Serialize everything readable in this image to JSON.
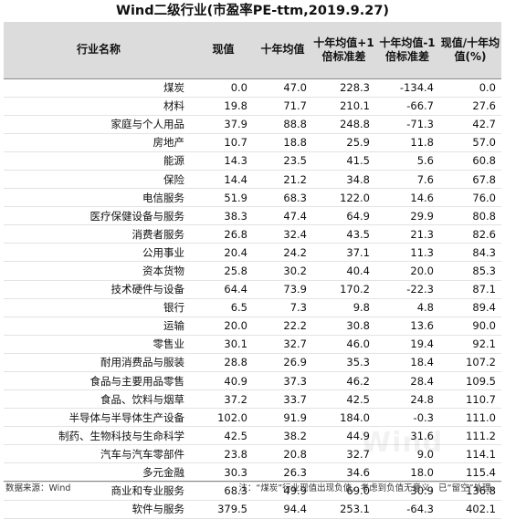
{
  "title": "Wind二级行业(市盈率PE-ttm,2019.9.27)",
  "headers": {
    "name": "行业名称",
    "current": "现值",
    "avg10": "十年均值",
    "plus1sd": "十年均值+1倍标准差",
    "minus1sd": "十年均值-1倍标准差",
    "ratio": "现值/十年均值(%)"
  },
  "rows": [
    {
      "name": "煤炭",
      "current": "0.0",
      "avg10": "47.0",
      "plus1sd": "228.3",
      "minus1sd": "-134.4",
      "ratio": "0.0"
    },
    {
      "name": "材料",
      "current": "19.8",
      "avg10": "71.7",
      "plus1sd": "210.1",
      "minus1sd": "-66.7",
      "ratio": "27.6"
    },
    {
      "name": "家庭与个人用品",
      "current": "37.9",
      "avg10": "88.8",
      "plus1sd": "248.8",
      "minus1sd": "-71.3",
      "ratio": "42.7"
    },
    {
      "name": "房地产",
      "current": "10.7",
      "avg10": "18.8",
      "plus1sd": "25.9",
      "minus1sd": "11.8",
      "ratio": "57.0"
    },
    {
      "name": "能源",
      "current": "14.3",
      "avg10": "23.5",
      "plus1sd": "41.5",
      "minus1sd": "5.6",
      "ratio": "60.8"
    },
    {
      "name": "保险",
      "current": "14.4",
      "avg10": "21.2",
      "plus1sd": "34.8",
      "minus1sd": "7.6",
      "ratio": "67.8"
    },
    {
      "name": "电信服务",
      "current": "51.9",
      "avg10": "68.3",
      "plus1sd": "122.0",
      "minus1sd": "14.6",
      "ratio": "76.0"
    },
    {
      "name": "医疗保健设备与服务",
      "current": "38.3",
      "avg10": "47.4",
      "plus1sd": "64.9",
      "minus1sd": "29.9",
      "ratio": "80.8"
    },
    {
      "name": "消费者服务",
      "current": "26.8",
      "avg10": "32.4",
      "plus1sd": "43.5",
      "minus1sd": "21.3",
      "ratio": "82.6"
    },
    {
      "name": "公用事业",
      "current": "20.4",
      "avg10": "24.2",
      "plus1sd": "37.1",
      "minus1sd": "11.3",
      "ratio": "84.3"
    },
    {
      "name": "资本货物",
      "current": "25.8",
      "avg10": "30.2",
      "plus1sd": "40.4",
      "minus1sd": "20.0",
      "ratio": "85.3"
    },
    {
      "name": "技术硬件与设备",
      "current": "64.4",
      "avg10": "73.9",
      "plus1sd": "170.2",
      "minus1sd": "-22.3",
      "ratio": "87.1"
    },
    {
      "name": "银行",
      "current": "6.5",
      "avg10": "7.3",
      "plus1sd": "9.8",
      "minus1sd": "4.8",
      "ratio": "89.4"
    },
    {
      "name": "运输",
      "current": "20.0",
      "avg10": "22.2",
      "plus1sd": "30.8",
      "minus1sd": "13.6",
      "ratio": "90.0"
    },
    {
      "name": "零售业",
      "current": "30.1",
      "avg10": "32.7",
      "plus1sd": "46.0",
      "minus1sd": "19.4",
      "ratio": "92.1"
    },
    {
      "name": "耐用消费品与服装",
      "current": "28.8",
      "avg10": "26.9",
      "plus1sd": "35.3",
      "minus1sd": "18.4",
      "ratio": "107.2"
    },
    {
      "name": "食品与主要用品零售",
      "current": "40.9",
      "avg10": "37.3",
      "plus1sd": "46.2",
      "minus1sd": "28.4",
      "ratio": "109.5"
    },
    {
      "name": "食品、饮料与烟草",
      "current": "37.2",
      "avg10": "33.7",
      "plus1sd": "42.5",
      "minus1sd": "24.8",
      "ratio": "110.7"
    },
    {
      "name": "半导体与半导体生产设备",
      "current": "102.0",
      "avg10": "91.9",
      "plus1sd": "184.0",
      "minus1sd": "-0.3",
      "ratio": "111.0"
    },
    {
      "name": "制药、生物科技与生命科学",
      "current": "42.5",
      "avg10": "38.2",
      "plus1sd": "44.9",
      "minus1sd": "31.6",
      "ratio": "111.2"
    },
    {
      "name": "汽车与汽车零部件",
      "current": "23.8",
      "avg10": "20.8",
      "plus1sd": "32.7",
      "minus1sd": "9.0",
      "ratio": "114.1"
    },
    {
      "name": "多元金融",
      "current": "30.3",
      "avg10": "26.3",
      "plus1sd": "34.6",
      "minus1sd": "18.0",
      "ratio": "115.4"
    },
    {
      "name": "商业和专业服务",
      "current": "68.3",
      "avg10": "49.9",
      "plus1sd": "69.0",
      "minus1sd": "30.9",
      "ratio": "136.8"
    },
    {
      "name": "软件与服务",
      "current": "379.5",
      "avg10": "94.4",
      "plus1sd": "253.1",
      "minus1sd": "-64.3",
      "ratio": "402.1"
    }
  ],
  "footer": {
    "source": "数据来源：Wind",
    "note": "注：“煤炭”行业现值出现负值，考虑到负值无意义，已“留空”处理。"
  },
  "watermark": "Wind"
}
